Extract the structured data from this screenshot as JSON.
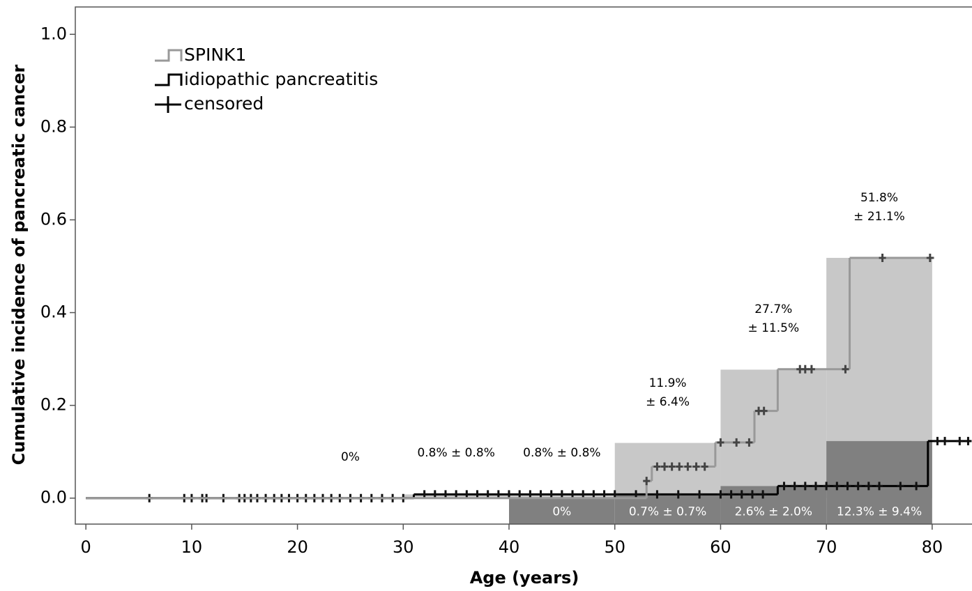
{
  "chart_data": {
    "type": "step",
    "x_label": "Age (years)",
    "y_label": "Cumulative incidence of pancreatic cancer",
    "xlim": [
      -1,
      83.7
    ],
    "ylim": [
      -0.056,
      1.059
    ],
    "xticks": [
      0,
      10,
      20,
      30,
      40,
      50,
      60,
      70,
      80
    ],
    "yticks": [
      {
        "value": 0,
        "label": "0.0"
      },
      0.2,
      0.4,
      0.6,
      0.8,
      {
        "value": 1,
        "label": "1.0"
      }
    ],
    "legend_position": "upper left",
    "censored_label": "censored",
    "series": [
      {
        "name": "SPINK1",
        "color": "#999999",
        "x": [
          0,
          53,
          53.5,
          59.5,
          63.2,
          65.4,
          72.2,
          80.2
        ],
        "values": [
          0,
          0.037,
          0.068,
          0.12,
          0.188,
          0.278,
          0.518,
          0.518
        ],
        "censored_x": [
          53,
          54,
          54.7,
          55.4,
          56.1,
          56.9,
          57.7,
          58.5,
          60,
          61.5,
          62.7,
          63.6,
          64.1,
          67.5,
          68,
          68.6,
          71.8,
          75.3,
          79.8
        ],
        "censored_y": [
          0.037,
          0.068,
          0.068,
          0.068,
          0.068,
          0.068,
          0.068,
          0.068,
          0.12,
          0.12,
          0.12,
          0.188,
          0.188,
          0.278,
          0.278,
          0.278,
          0.278,
          0.518,
          0.518
        ]
      },
      {
        "name": "idiopathic pancreatitis",
        "color": "#000000",
        "x": [
          0,
          31,
          65.4,
          79.6,
          83.7
        ],
        "values": [
          0,
          0.008,
          0.026,
          0.123,
          0.123
        ],
        "censored_x": [
          6,
          9.3,
          10,
          11,
          11.4,
          13,
          14.5,
          15,
          15.6,
          16.2,
          17,
          17.8,
          18.5,
          19.2,
          20,
          20.8,
          21.6,
          22.4,
          23.2,
          24,
          25,
          26,
          27,
          28,
          29,
          30,
          32,
          33,
          34,
          35,
          36,
          37,
          38,
          39,
          40,
          41,
          42,
          43,
          44,
          45,
          46,
          47,
          48,
          49,
          50,
          52,
          54,
          56,
          58,
          60,
          61,
          62,
          63,
          64,
          66,
          67,
          68,
          69,
          70,
          71,
          72,
          73,
          74,
          75,
          77,
          78.5,
          80.5,
          81.2,
          82.6,
          83.4
        ],
        "censored_y": [
          0,
          0,
          0,
          0,
          0,
          0,
          0,
          0,
          0,
          0,
          0,
          0,
          0,
          0,
          0,
          0,
          0,
          0,
          0,
          0,
          0,
          0,
          0,
          0,
          0,
          0,
          0.008,
          0.008,
          0.008,
          0.008,
          0.008,
          0.008,
          0.008,
          0.008,
          0.008,
          0.008,
          0.008,
          0.008,
          0.008,
          0.008,
          0.008,
          0.008,
          0.008,
          0.008,
          0.008,
          0.008,
          0.008,
          0.008,
          0.008,
          0.008,
          0.008,
          0.008,
          0.008,
          0.008,
          0.026,
          0.026,
          0.026,
          0.026,
          0.026,
          0.026,
          0.026,
          0.026,
          0.026,
          0.026,
          0.026,
          0.026,
          0.123,
          0.123,
          0.123,
          0.123
        ]
      }
    ],
    "interval_boxes": [
      {
        "color": "#c8c8c8",
        "text_color": "#000000",
        "base": "zero",
        "bins": [
          20,
          30,
          40,
          50,
          60,
          70,
          80
        ],
        "values": [
          0,
          0.008,
          0.008,
          0.119,
          0.277,
          0.518
        ],
        "value_labels": [
          "0%",
          "0.8% ± 0.8%",
          "0.8% ± 0.8%",
          "11.9%\n± 6.4%",
          "27.7%\n± 11.5%",
          "51.8%\n± 21.1%"
        ]
      },
      {
        "color": "#808080",
        "text_color": "#ffffff",
        "base": "bottom",
        "bins": [
          40,
          50,
          60,
          70,
          80
        ],
        "values": [
          0,
          0.007,
          0.026,
          0.123
        ],
        "value_labels": [
          "0%",
          "0.7% ± 0.7%",
          "2.6% ± 2.0%",
          "12.3% ± 9.4%"
        ]
      }
    ]
  }
}
